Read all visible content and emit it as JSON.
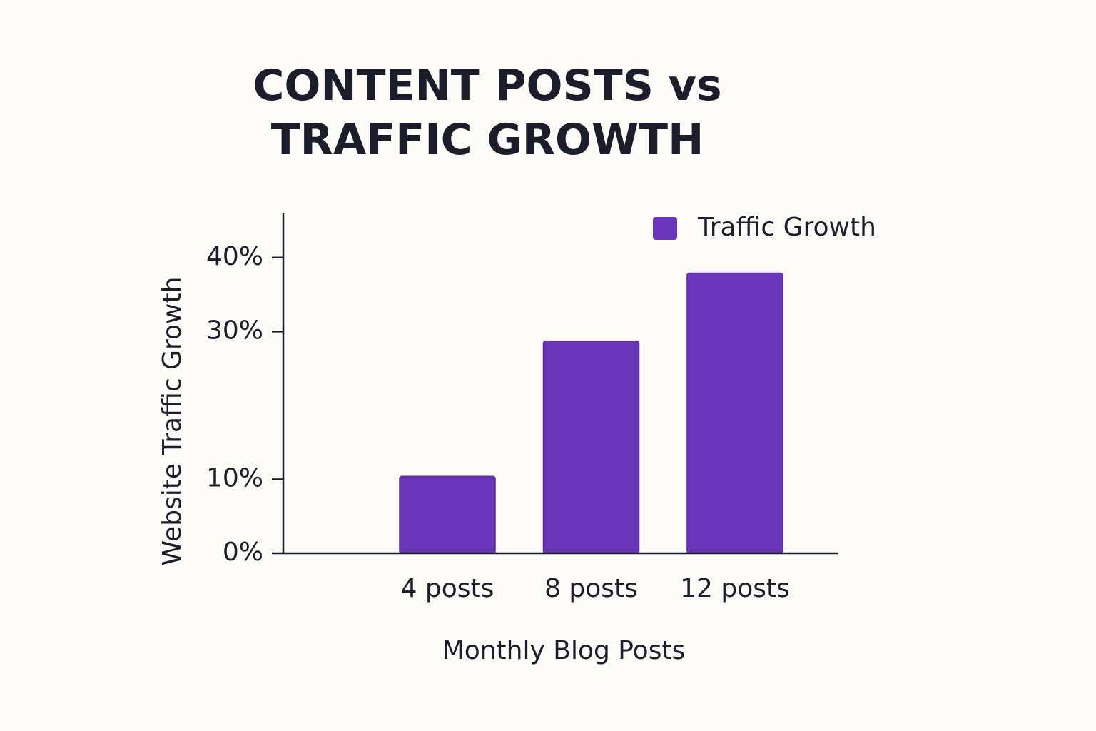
{
  "chart_data": {
    "type": "bar",
    "title": "CONTENT POSTS vs\nTRAFFIC GROWTH",
    "x_label": "Monthly Blog Posts",
    "y_label": "Website Traffic Growth",
    "categories": [
      "4 posts",
      "8 posts",
      "12 posts"
    ],
    "series": [
      {
        "name": "Traffic Growth",
        "color": "#6a35b8",
        "values": [
          10.4,
          28.7,
          37.9
        ]
      }
    ],
    "ylim": [
      0,
      45
    ],
    "yticks": [
      {
        "value": 0,
        "label": "0%"
      },
      {
        "value": 10,
        "label": "10%"
      },
      {
        "value": 30,
        "label": "30%"
      },
      {
        "value": 40,
        "label": "40%"
      }
    ],
    "legend": "top-right",
    "grid": false
  }
}
